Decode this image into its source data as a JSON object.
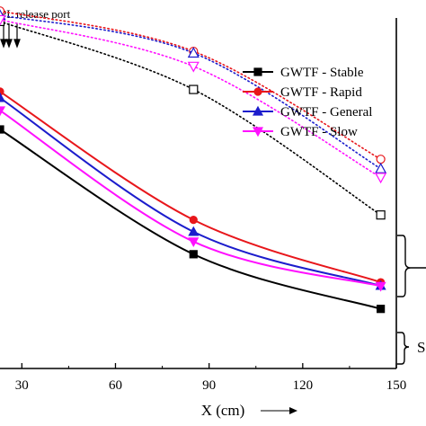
{
  "header": {
    "release_label": "PL release port"
  },
  "side_label_bottom": "S",
  "chart_data": {
    "type": "line",
    "xlabel": "X (cm)",
    "ylabel": "",
    "xlim": [
      23,
      150
    ],
    "ylim": [
      0,
      1
    ],
    "x_ticks": [
      30,
      60,
      90,
      120,
      150
    ],
    "legend_position": "top-right",
    "series": [
      {
        "name": "GWTF - Stable",
        "color": "#000000",
        "marker": "square",
        "x": [
          23,
          85,
          145
        ],
        "values": [
          0.682,
          0.326,
          0.17
        ]
      },
      {
        "name": "GWTF - Rapid",
        "color": "#e8161b",
        "marker": "circle",
        "x": [
          23,
          85,
          145
        ],
        "values": [
          0.79,
          0.424,
          0.246
        ]
      },
      {
        "name": "GWTF - General",
        "color": "#1c1ccc",
        "marker": "triangle",
        "x": [
          23,
          85,
          145
        ],
        "values": [
          0.772,
          0.39,
          0.236
        ]
      },
      {
        "name": "GWTF - Slow",
        "color": "#ff10ff",
        "marker": "tri-down",
        "x": [
          23,
          85,
          145
        ],
        "values": [
          0.736,
          0.362,
          0.235
        ]
      }
    ],
    "dotted_series": [
      {
        "color": "#000000",
        "marker": "square",
        "x": [
          23,
          85,
          145
        ],
        "values": [
          0.99,
          0.796,
          0.438
        ]
      },
      {
        "color": "#e8161b",
        "marker": "circle",
        "x": [
          23,
          85,
          145
        ],
        "values": [
          1.02,
          0.905,
          0.597
        ]
      },
      {
        "color": "#1c1ccc",
        "marker": "triangle",
        "x": [
          23,
          85,
          145
        ],
        "values": [
          1.008,
          0.9,
          0.57
        ]
      },
      {
        "color": "#ff10ff",
        "marker": "tri-down",
        "x": [
          23,
          85,
          145
        ],
        "values": [
          0.995,
          0.862,
          0.545
        ]
      }
    ]
  }
}
